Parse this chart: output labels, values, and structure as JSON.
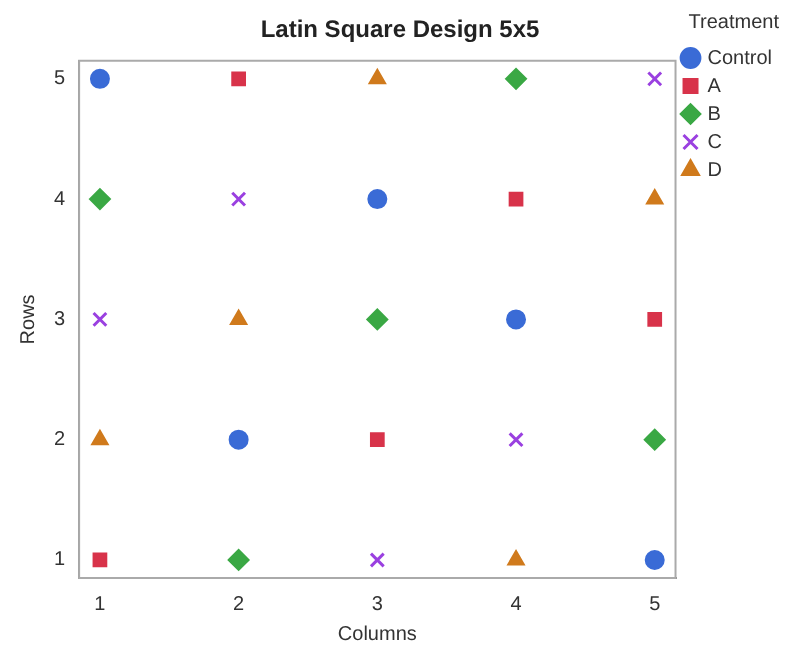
{
  "chart_data": {
    "type": "scatter",
    "title": "Latin Square Design 5x5",
    "xlabel": "Columns",
    "ylabel": "Rows",
    "xlim": [
      0.85,
      5.15
    ],
    "xticks": [
      1,
      2,
      3,
      4,
      5
    ],
    "ylim": [
      0.85,
      5.15
    ],
    "yticks": [
      1,
      2,
      3,
      4,
      5
    ],
    "grid": false,
    "legend": "right",
    "legend_title": "Treatment",
    "series": [
      {
        "name": "Control",
        "color": "#3a6bd6",
        "marker": "circle",
        "x": [
          1,
          3,
          4,
          2,
          5
        ],
        "values": [
          5,
          4,
          3,
          2,
          1
        ]
      },
      {
        "name": "A",
        "color": "#d8334a",
        "marker": "square",
        "x": [
          2,
          4,
          5,
          3,
          1
        ],
        "values": [
          5,
          4,
          3,
          2,
          1
        ]
      },
      {
        "name": "B",
        "color": "#3aa844",
        "marker": "diamond",
        "x": [
          4,
          1,
          3,
          5,
          2
        ],
        "values": [
          5,
          4,
          3,
          2,
          1
        ]
      },
      {
        "name": "C",
        "color": "#9a40e0",
        "marker": "cross",
        "x": [
          5,
          2,
          1,
          4,
          3
        ],
        "values": [
          5,
          4,
          3,
          2,
          1
        ]
      },
      {
        "name": "D",
        "color": "#d07a1c",
        "marker": "triangle",
        "x": [
          3,
          5,
          2,
          1,
          4
        ],
        "values": [
          5,
          4,
          3,
          2,
          1
        ]
      }
    ]
  }
}
